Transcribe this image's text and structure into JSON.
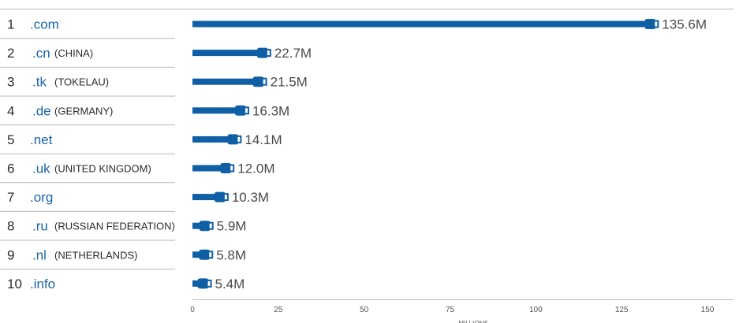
{
  "chart_data": {
    "type": "bar",
    "title": "",
    "ranks": [
      "1",
      "2",
      "3",
      "4",
      "5",
      "6",
      "7",
      "8",
      "9",
      "10"
    ],
    "categories": [
      ".com",
      ".cn",
      ".tk",
      ".de",
      ".net",
      ".uk",
      ".org",
      ".ru",
      ".nl",
      ".info"
    ],
    "countries": [
      "",
      "(CHINA)",
      "(TOKELAU)",
      "(GERMANY)",
      "",
      "(UNITED KINGDOM)",
      "",
      "(RUSSIAN FEDERATION)",
      "(NETHERLANDS)",
      ""
    ],
    "values": [
      135.6,
      22.7,
      21.5,
      16.3,
      14.1,
      12.0,
      10.3,
      5.9,
      5.8,
      5.4
    ],
    "value_labels": [
      "135.6M",
      "22.7M",
      "21.5M",
      "16.3M",
      "14.1M",
      "12.0M",
      "10.3M",
      "5.9M",
      "5.8M",
      "5.4M"
    ],
    "xlabel": "MILLIONS",
    "ylabel": "",
    "xlim": [
      0,
      150
    ],
    "xticks": [
      "0",
      "25",
      "50",
      "75",
      "100",
      "125",
      "150"
    ],
    "bar_color": "#0f5fa5",
    "label_color": "#1a64a8",
    "grid": false
  }
}
